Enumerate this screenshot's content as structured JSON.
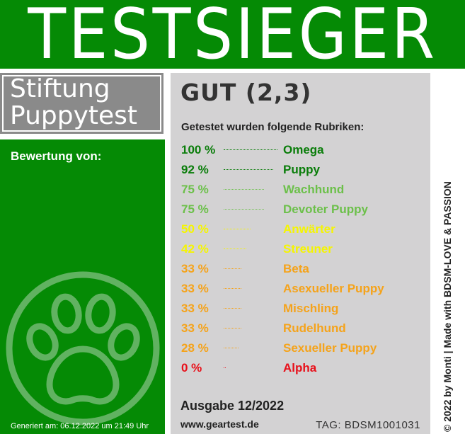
{
  "banner": {
    "title": "TESTSIEGER"
  },
  "organization": {
    "line1": "Stiftung",
    "line2": "Puppytest"
  },
  "evaluation_label": "Bewertung von:",
  "generated_text": "Generiert am: 06.12.2022 um 21:49 Uhr",
  "grade": "GUT (2,3)",
  "rubrics_heading": "Getestet wurden folgende Rubriken:",
  "ratings": [
    {
      "percent": "100 %",
      "name": "Omega",
      "value": 100,
      "color": "#0a7d0a"
    },
    {
      "percent": "92 %",
      "name": "Puppy",
      "value": 92,
      "color": "#0a7d0a"
    },
    {
      "percent": "75 %",
      "name": "Wachhund",
      "value": 75,
      "color": "#6cc04a"
    },
    {
      "percent": "75 %",
      "name": "Devoter Puppy",
      "value": 75,
      "color": "#6cc04a"
    },
    {
      "percent": "50 %",
      "name": "Anwärter",
      "value": 50,
      "color": "#f5f500"
    },
    {
      "percent": "42 %",
      "name": "Streuner",
      "value": 42,
      "color": "#f5f500"
    },
    {
      "percent": "33 %",
      "name": "Beta",
      "value": 33,
      "color": "#f5a31a"
    },
    {
      "percent": "33 %",
      "name": "Asexueller Puppy",
      "value": 33,
      "color": "#f5a31a"
    },
    {
      "percent": "33 %",
      "name": "Mischling",
      "value": 33,
      "color": "#f5a31a"
    },
    {
      "percent": "33 %",
      "name": "Rudelhund",
      "value": 33,
      "color": "#f5a31a"
    },
    {
      "percent": "28 %",
      "name": "Sexueller Puppy",
      "value": 28,
      "color": "#f5a31a"
    },
    {
      "percent": "0 %",
      "name": "Alpha",
      "value": 0,
      "color": "#e8101a"
    }
  ],
  "issue": "Ausgabe 12/2022",
  "website": "www.geartest.de",
  "tag": "TAG: BDSM1001031",
  "side_text": "© 2022 by Monti | Made with BDSM-LOVE & PASSION",
  "icons": {
    "paw": "paw-print-icon"
  },
  "colors": {
    "brand_green": "#058a05",
    "panel_gray": "#d3d2d3",
    "org_gray": "#8a8a8a"
  }
}
